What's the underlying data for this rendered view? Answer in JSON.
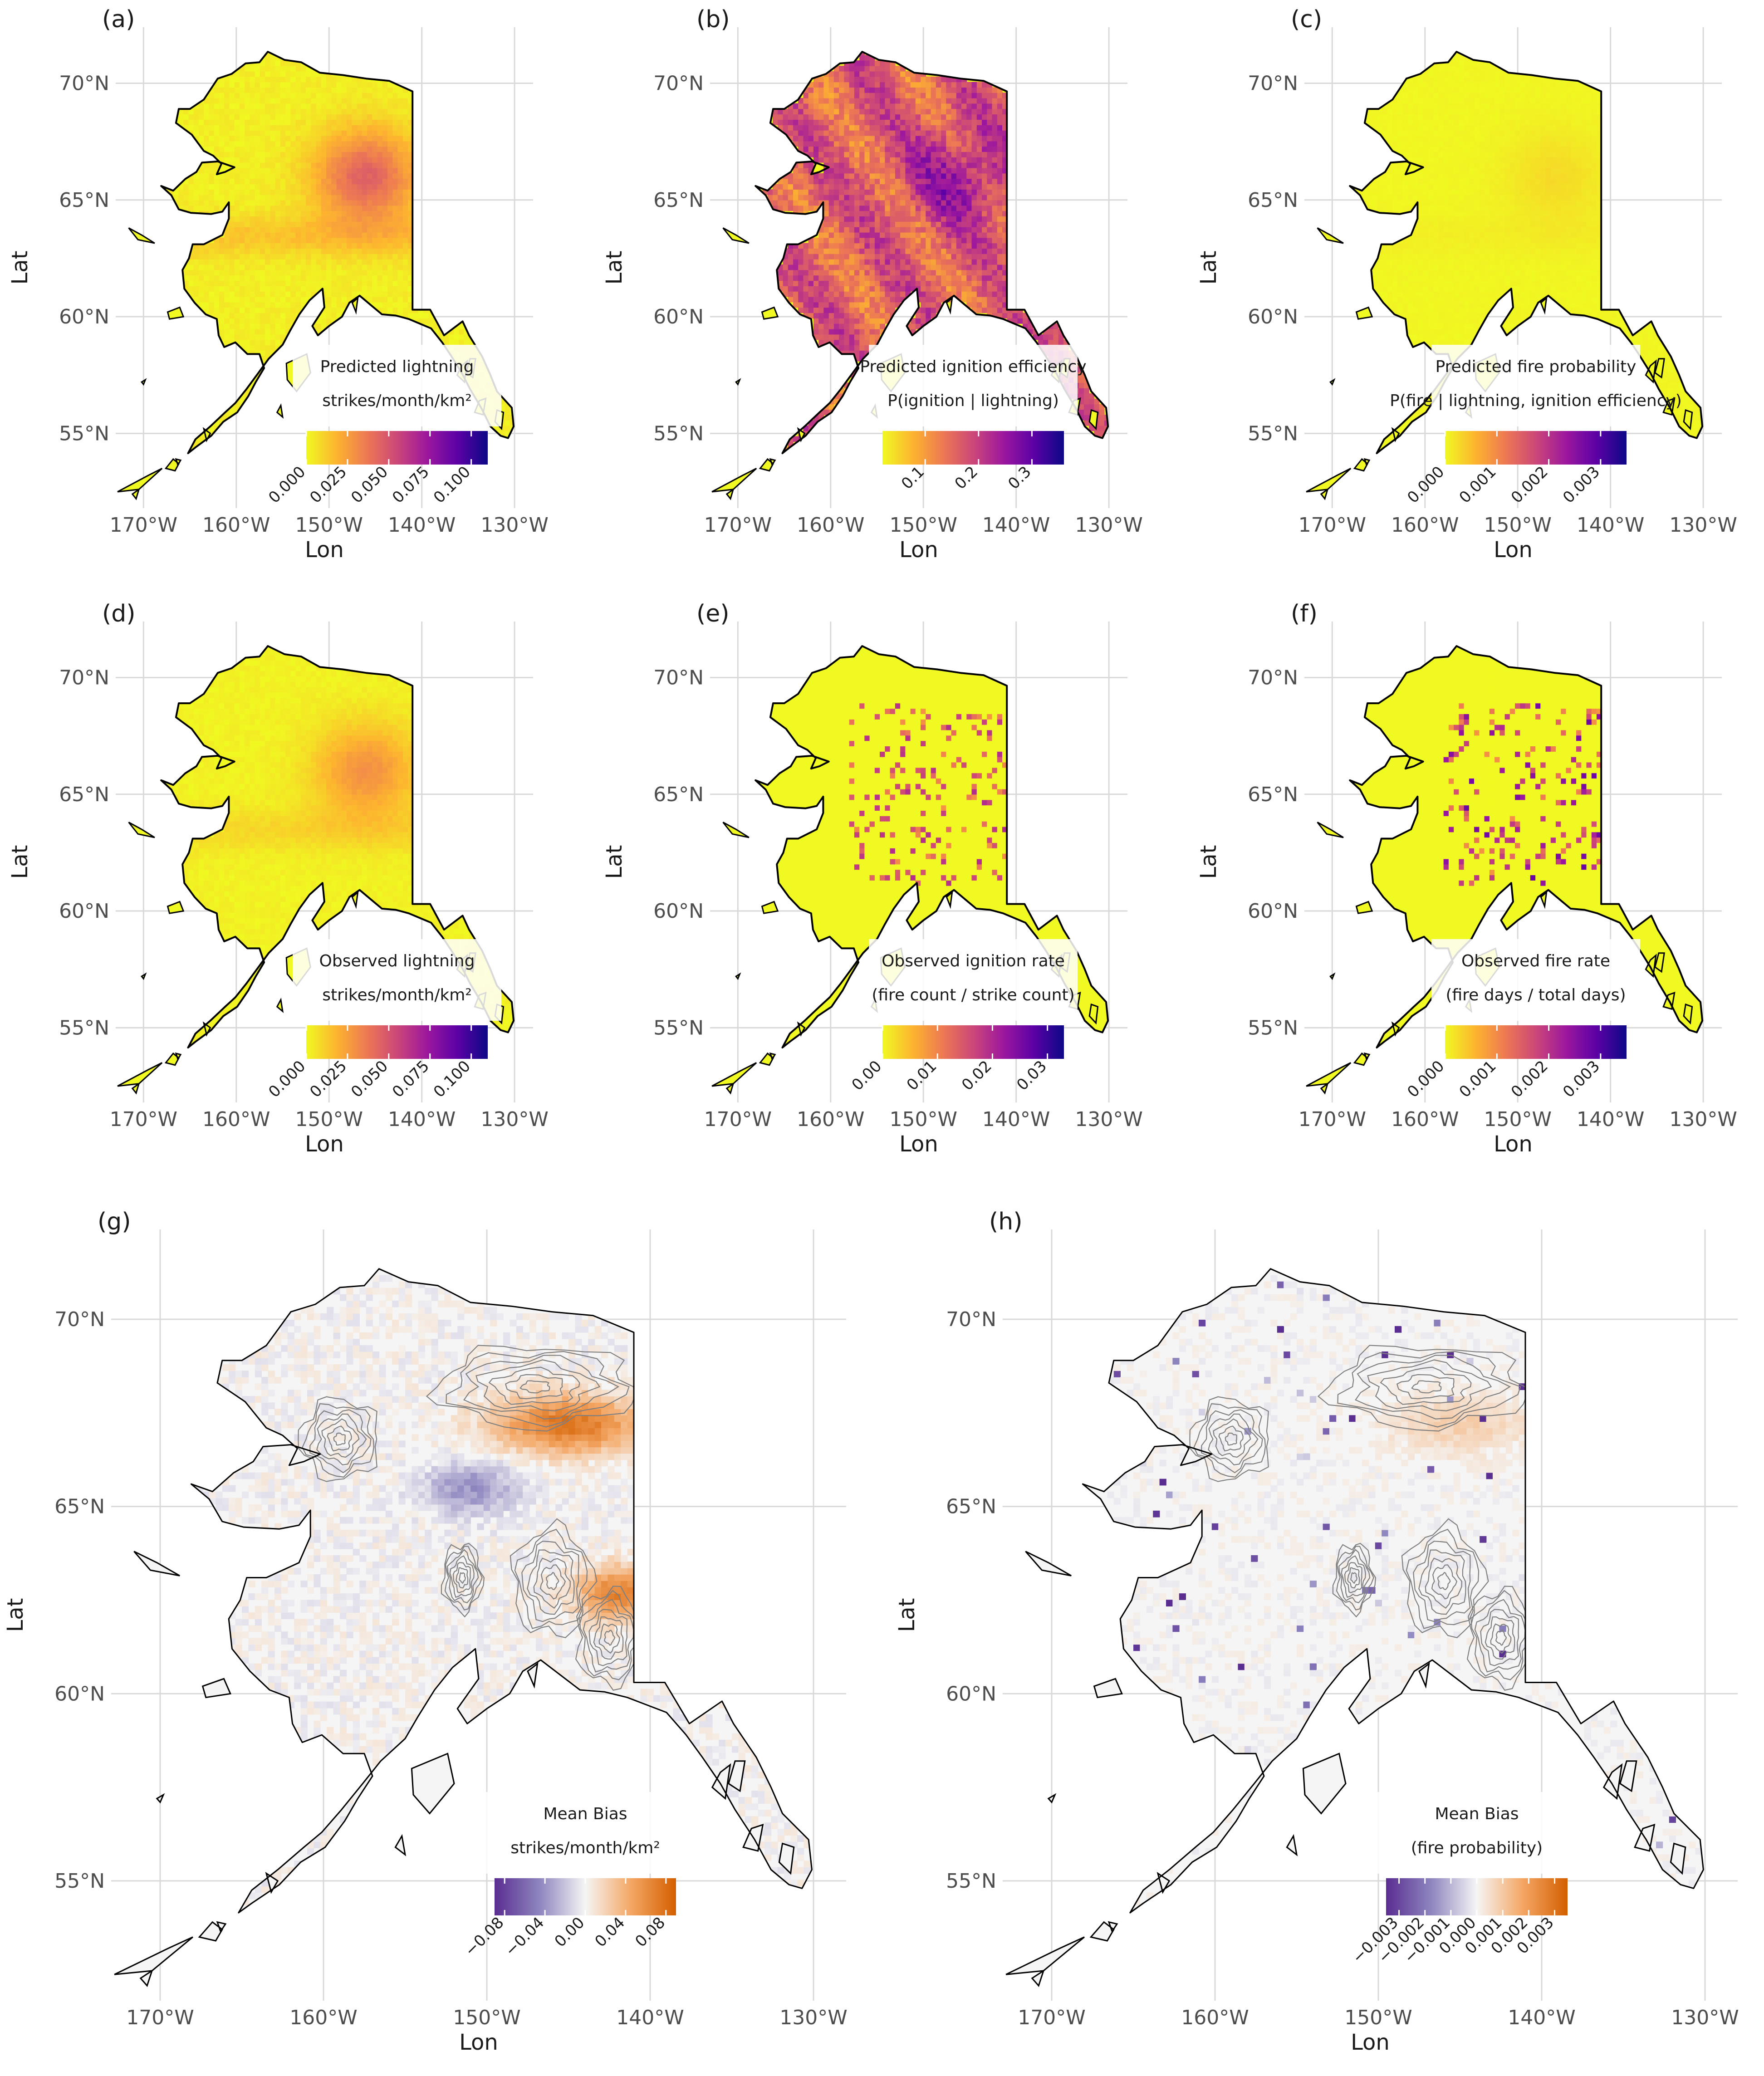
{
  "chart_data": [
    {
      "panel": "(a)",
      "type": "heatmap",
      "xlabel": "Lon",
      "ylabel": "Lat",
      "x_ticks": [
        "170°W",
        "160°W",
        "150°W",
        "140°W",
        "130°W"
      ],
      "y_ticks": [
        "70°N",
        "65°N",
        "60°N",
        "55°N"
      ],
      "legend": {
        "title": [
          "Predicted lightning",
          "strikes/month/km²"
        ],
        "palette": "plasma-reversed",
        "range": [
          0,
          0.11
        ],
        "ticks": [
          "0.000",
          "0.025",
          "0.050",
          "0.075",
          "0.100"
        ],
        "tick_values": [
          0,
          0.025,
          0.05,
          0.075,
          0.1
        ]
      },
      "hotspot": 0.7
    },
    {
      "panel": "(b)",
      "type": "heatmap",
      "xlabel": "Lon",
      "ylabel": "Lat",
      "x_ticks": [
        "170°W",
        "160°W",
        "150°W",
        "140°W",
        "130°W"
      ],
      "y_ticks": [
        "70°N",
        "65°N",
        "60°N",
        "55°N"
      ],
      "legend": {
        "title": [
          "Predicted ignition efficiency",
          "P(ignition | lightning)"
        ],
        "palette": "plasma-reversed",
        "range": [
          0.02,
          0.36
        ],
        "ticks": [
          "0.1",
          "0.2",
          "0.3"
        ],
        "tick_values": [
          0.1,
          0.2,
          0.3
        ]
      },
      "hotspot": 1.0
    },
    {
      "panel": "(c)",
      "type": "heatmap",
      "xlabel": "Lon",
      "ylabel": "Lat",
      "x_ticks": [
        "170°W",
        "160°W",
        "150°W",
        "140°W",
        "130°W"
      ],
      "y_ticks": [
        "70°N",
        "65°N",
        "60°N",
        "55°N"
      ],
      "legend": {
        "title": [
          "Predicted fire probability",
          "P(fire | lightning, ignition efficiency)"
        ],
        "palette": "plasma-reversed",
        "range": [
          0,
          0.0035
        ],
        "ticks": [
          "0.000",
          "0.001",
          "0.002",
          "0.003"
        ],
        "tick_values": [
          0,
          0.001,
          0.002,
          0.003
        ]
      },
      "hotspot": 0.12
    },
    {
      "panel": "(d)",
      "type": "heatmap",
      "xlabel": "Lon",
      "ylabel": "Lat",
      "x_ticks": [
        "170°W",
        "160°W",
        "150°W",
        "140°W",
        "130°W"
      ],
      "y_ticks": [
        "70°N",
        "65°N",
        "60°N",
        "55°N"
      ],
      "legend": {
        "title": [
          "Observed lightning",
          "strikes/month/km²"
        ],
        "palette": "plasma-reversed",
        "range": [
          0,
          0.11
        ],
        "ticks": [
          "0.000",
          "0.025",
          "0.050",
          "0.075",
          "0.100"
        ],
        "tick_values": [
          0,
          0.025,
          0.05,
          0.075,
          0.1
        ]
      },
      "hotspot": 0.45
    },
    {
      "panel": "(e)",
      "type": "heatmap",
      "xlabel": "Lon",
      "ylabel": "Lat",
      "x_ticks": [
        "170°W",
        "160°W",
        "150°W",
        "140°W",
        "130°W"
      ],
      "y_ticks": [
        "70°N",
        "65°N",
        "60°N",
        "55°N"
      ],
      "legend": {
        "title": [
          "Observed ignition rate",
          "(fire count / strike count)"
        ],
        "palette": "plasma-reversed",
        "range": [
          0,
          0.033
        ],
        "ticks": [
          "0.00",
          "0.01",
          "0.02",
          "0.03"
        ],
        "tick_values": [
          0,
          0.01,
          0.02,
          0.03
        ]
      },
      "hotspot": 0.0
    },
    {
      "panel": "(f)",
      "type": "heatmap",
      "xlabel": "Lon",
      "ylabel": "Lat",
      "x_ticks": [
        "170°W",
        "160°W",
        "150°W",
        "140°W",
        "130°W"
      ],
      "y_ticks": [
        "70°N",
        "65°N",
        "60°N",
        "55°N"
      ],
      "legend": {
        "title": [
          "Observed fire rate",
          "(fire days / total days)"
        ],
        "palette": "plasma-reversed",
        "range": [
          0,
          0.0035
        ],
        "ticks": [
          "0.000",
          "0.001",
          "0.002",
          "0.003"
        ],
        "tick_values": [
          0,
          0.001,
          0.002,
          0.003
        ]
      },
      "hotspot": 0.0
    },
    {
      "panel": "(g)",
      "type": "heatmap",
      "xlabel": "Lon",
      "ylabel": "Lat",
      "x_ticks": [
        "170°W",
        "160°W",
        "150°W",
        "140°W",
        "130°W"
      ],
      "y_ticks": [
        "70°N",
        "65°N",
        "60°N",
        "55°N"
      ],
      "legend": {
        "title": [
          "Mean Bias",
          "strikes/month/km²"
        ],
        "palette": "diverging-purple-orange",
        "range": [
          -0.09,
          0.09
        ],
        "ticks": [
          "−0.08",
          "−0.04",
          "0.00",
          "0.04",
          "0.08"
        ],
        "tick_values": [
          -0.08,
          -0.04,
          0,
          0.04,
          0.08
        ]
      }
    },
    {
      "panel": "(h)",
      "type": "heatmap",
      "xlabel": "Lon",
      "ylabel": "Lat",
      "x_ticks": [
        "170°W",
        "160°W",
        "150°W",
        "140°W",
        "130°W"
      ],
      "y_ticks": [
        "70°N",
        "65°N",
        "60°N",
        "55°N"
      ],
      "legend": {
        "title": [
          "Mean Bias",
          "(fire probability)"
        ],
        "palette": "diverging-purple-orange",
        "range": [
          -0.0035,
          0.0035
        ],
        "ticks": [
          "−0.003",
          "−0.002",
          "−0.001",
          "0.000",
          "0.001",
          "0.002",
          "0.003"
        ],
        "tick_values": [
          -0.003,
          -0.002,
          -0.001,
          0,
          0.001,
          0.002,
          0.003
        ]
      }
    }
  ],
  "colors": {
    "plasma_reversed": [
      "#f0f921",
      "#fdb42f",
      "#ed7953",
      "#cc4778",
      "#9c179e",
      "#5c01a6",
      "#0d0887"
    ],
    "diverging": [
      "#5a2d91",
      "#8e86bf",
      "#f5f5f5",
      "#f4a765",
      "#d45f00"
    ],
    "grid": "#d9d9d9",
    "coast": "#000000"
  }
}
